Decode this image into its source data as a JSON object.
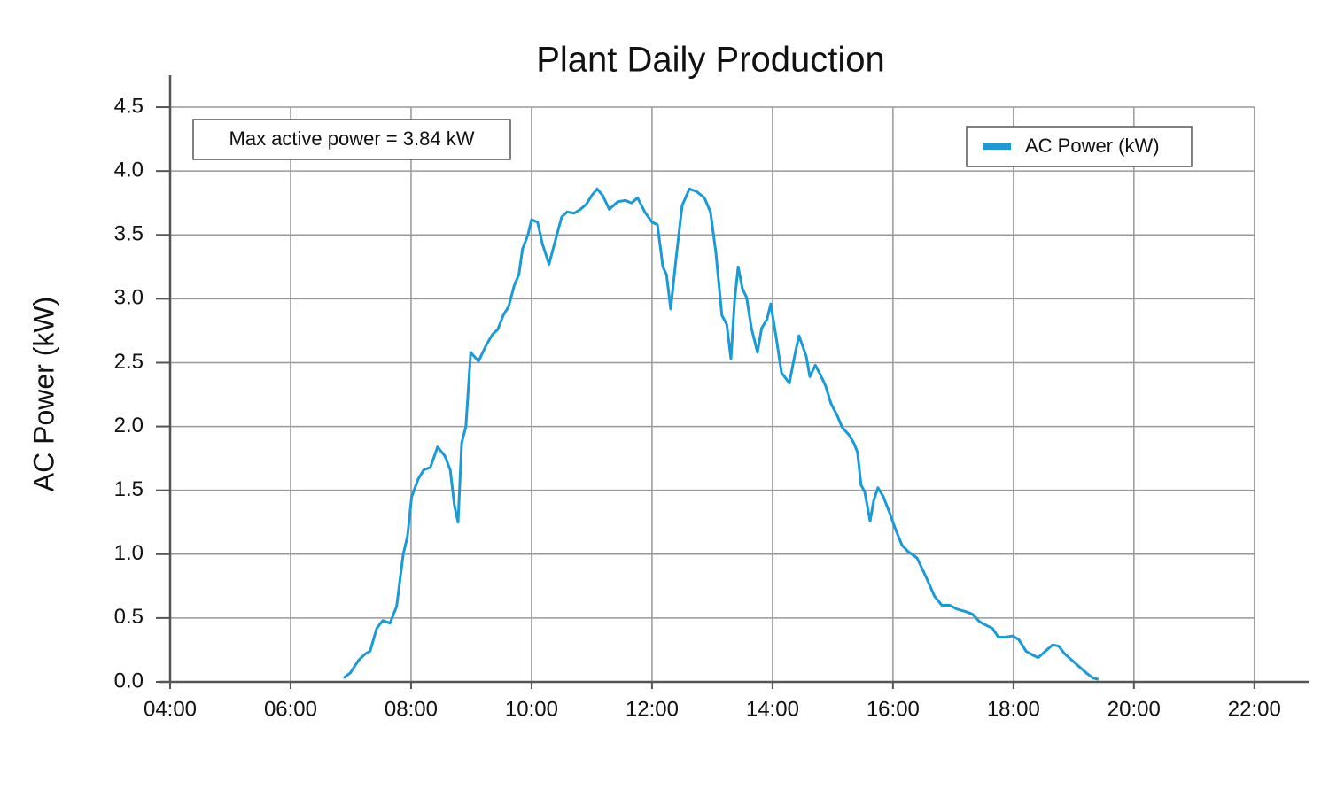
{
  "chart_data": {
    "type": "line",
    "title": "Plant Daily Production",
    "y_label": "AC Power (kW)",
    "annotation": "Max active power = 3.84 kW",
    "x": [
      6.88,
      6.99,
      7.13,
      7.24,
      7.32,
      7.43,
      7.53,
      7.65,
      7.76,
      7.87,
      7.94,
      8.01,
      8.12,
      8.21,
      8.32,
      8.44,
      8.56,
      8.65,
      8.72,
      8.78,
      8.84,
      8.91,
      8.99,
      9.12,
      9.24,
      9.35,
      9.44,
      9.53,
      9.62,
      9.71,
      9.79,
      9.85,
      9.94,
      10.0,
      10.1,
      10.18,
      10.29,
      10.38,
      10.5,
      10.59,
      10.71,
      10.81,
      10.91,
      11.0,
      11.09,
      11.18,
      11.29,
      11.43,
      11.56,
      11.66,
      11.76,
      11.88,
      12.0,
      12.09,
      12.18,
      12.24,
      12.31,
      12.4,
      12.5,
      12.62,
      12.74,
      12.87,
      12.97,
      13.06,
      13.16,
      13.24,
      13.31,
      13.37,
      13.43,
      13.5,
      13.57,
      13.65,
      13.75,
      13.82,
      13.91,
      13.97,
      14.06,
      14.15,
      14.28,
      14.37,
      14.44,
      14.56,
      14.62,
      14.71,
      14.79,
      14.88,
      14.97,
      15.07,
      15.16,
      15.26,
      15.35,
      15.41,
      15.47,
      15.53,
      15.62,
      15.68,
      15.75,
      15.84,
      15.94,
      16.03,
      16.15,
      16.25,
      16.4,
      16.54,
      16.69,
      16.81,
      16.94,
      17.06,
      17.21,
      17.32,
      17.44,
      17.56,
      17.65,
      17.75,
      17.87,
      17.99,
      18.09,
      18.21,
      18.32,
      18.41,
      18.53,
      18.65,
      18.75,
      18.85,
      18.97,
      19.09,
      19.21,
      19.32,
      19.41
    ],
    "series": [
      {
        "name": "AC Power (kW)",
        "color": "#1a9bd7",
        "values": [
          0.03,
          0.07,
          0.17,
          0.22,
          0.24,
          0.42,
          0.48,
          0.46,
          0.59,
          1.0,
          1.14,
          1.45,
          1.59,
          1.66,
          1.68,
          1.84,
          1.77,
          1.66,
          1.38,
          1.25,
          1.87,
          2.0,
          2.58,
          2.51,
          2.63,
          2.72,
          2.76,
          2.87,
          2.94,
          3.1,
          3.19,
          3.39,
          3.5,
          3.62,
          3.6,
          3.43,
          3.27,
          3.43,
          3.64,
          3.68,
          3.67,
          3.7,
          3.74,
          3.81,
          3.86,
          3.81,
          3.7,
          3.76,
          3.77,
          3.75,
          3.79,
          3.68,
          3.6,
          3.58,
          3.25,
          3.19,
          2.92,
          3.32,
          3.73,
          3.86,
          3.84,
          3.79,
          3.68,
          3.36,
          2.87,
          2.8,
          2.53,
          2.98,
          3.25,
          3.08,
          3.01,
          2.77,
          2.58,
          2.77,
          2.84,
          2.96,
          2.7,
          2.42,
          2.34,
          2.56,
          2.71,
          2.55,
          2.39,
          2.48,
          2.41,
          2.32,
          2.18,
          2.09,
          1.99,
          1.94,
          1.87,
          1.8,
          1.54,
          1.49,
          1.26,
          1.42,
          1.52,
          1.45,
          1.33,
          1.21,
          1.07,
          1.02,
          0.97,
          0.83,
          0.67,
          0.6,
          0.6,
          0.57,
          0.55,
          0.53,
          0.47,
          0.44,
          0.42,
          0.35,
          0.35,
          0.36,
          0.33,
          0.24,
          0.21,
          0.19,
          0.24,
          0.29,
          0.28,
          0.22,
          0.17,
          0.12,
          0.07,
          0.03,
          0.02
        ]
      }
    ],
    "xlim": [
      4,
      22.9
    ],
    "ylim": [
      0,
      4.75
    ],
    "xticks": [
      {
        "value": 4,
        "label": "04:00"
      },
      {
        "value": 6,
        "label": "06:00"
      },
      {
        "value": 8,
        "label": "08:00"
      },
      {
        "value": 10,
        "label": "10:00"
      },
      {
        "value": 12,
        "label": "12:00"
      },
      {
        "value": 14,
        "label": "14:00"
      },
      {
        "value": 16,
        "label": "16:00"
      },
      {
        "value": 18,
        "label": "18:00"
      },
      {
        "value": 20,
        "label": "20:00"
      },
      {
        "value": 22,
        "label": "22:00"
      }
    ],
    "yticks": [
      {
        "value": 0,
        "label": "0.0"
      },
      0.5,
      {
        "value": 1,
        "label": "1.0"
      },
      1.5,
      {
        "value": 2,
        "label": "2.0"
      },
      2.5,
      {
        "value": 3,
        "label": "3.0"
      },
      3.5,
      {
        "value": 4,
        "label": "4.0"
      },
      4.5
    ],
    "grid": true,
    "legend": "upper right"
  }
}
